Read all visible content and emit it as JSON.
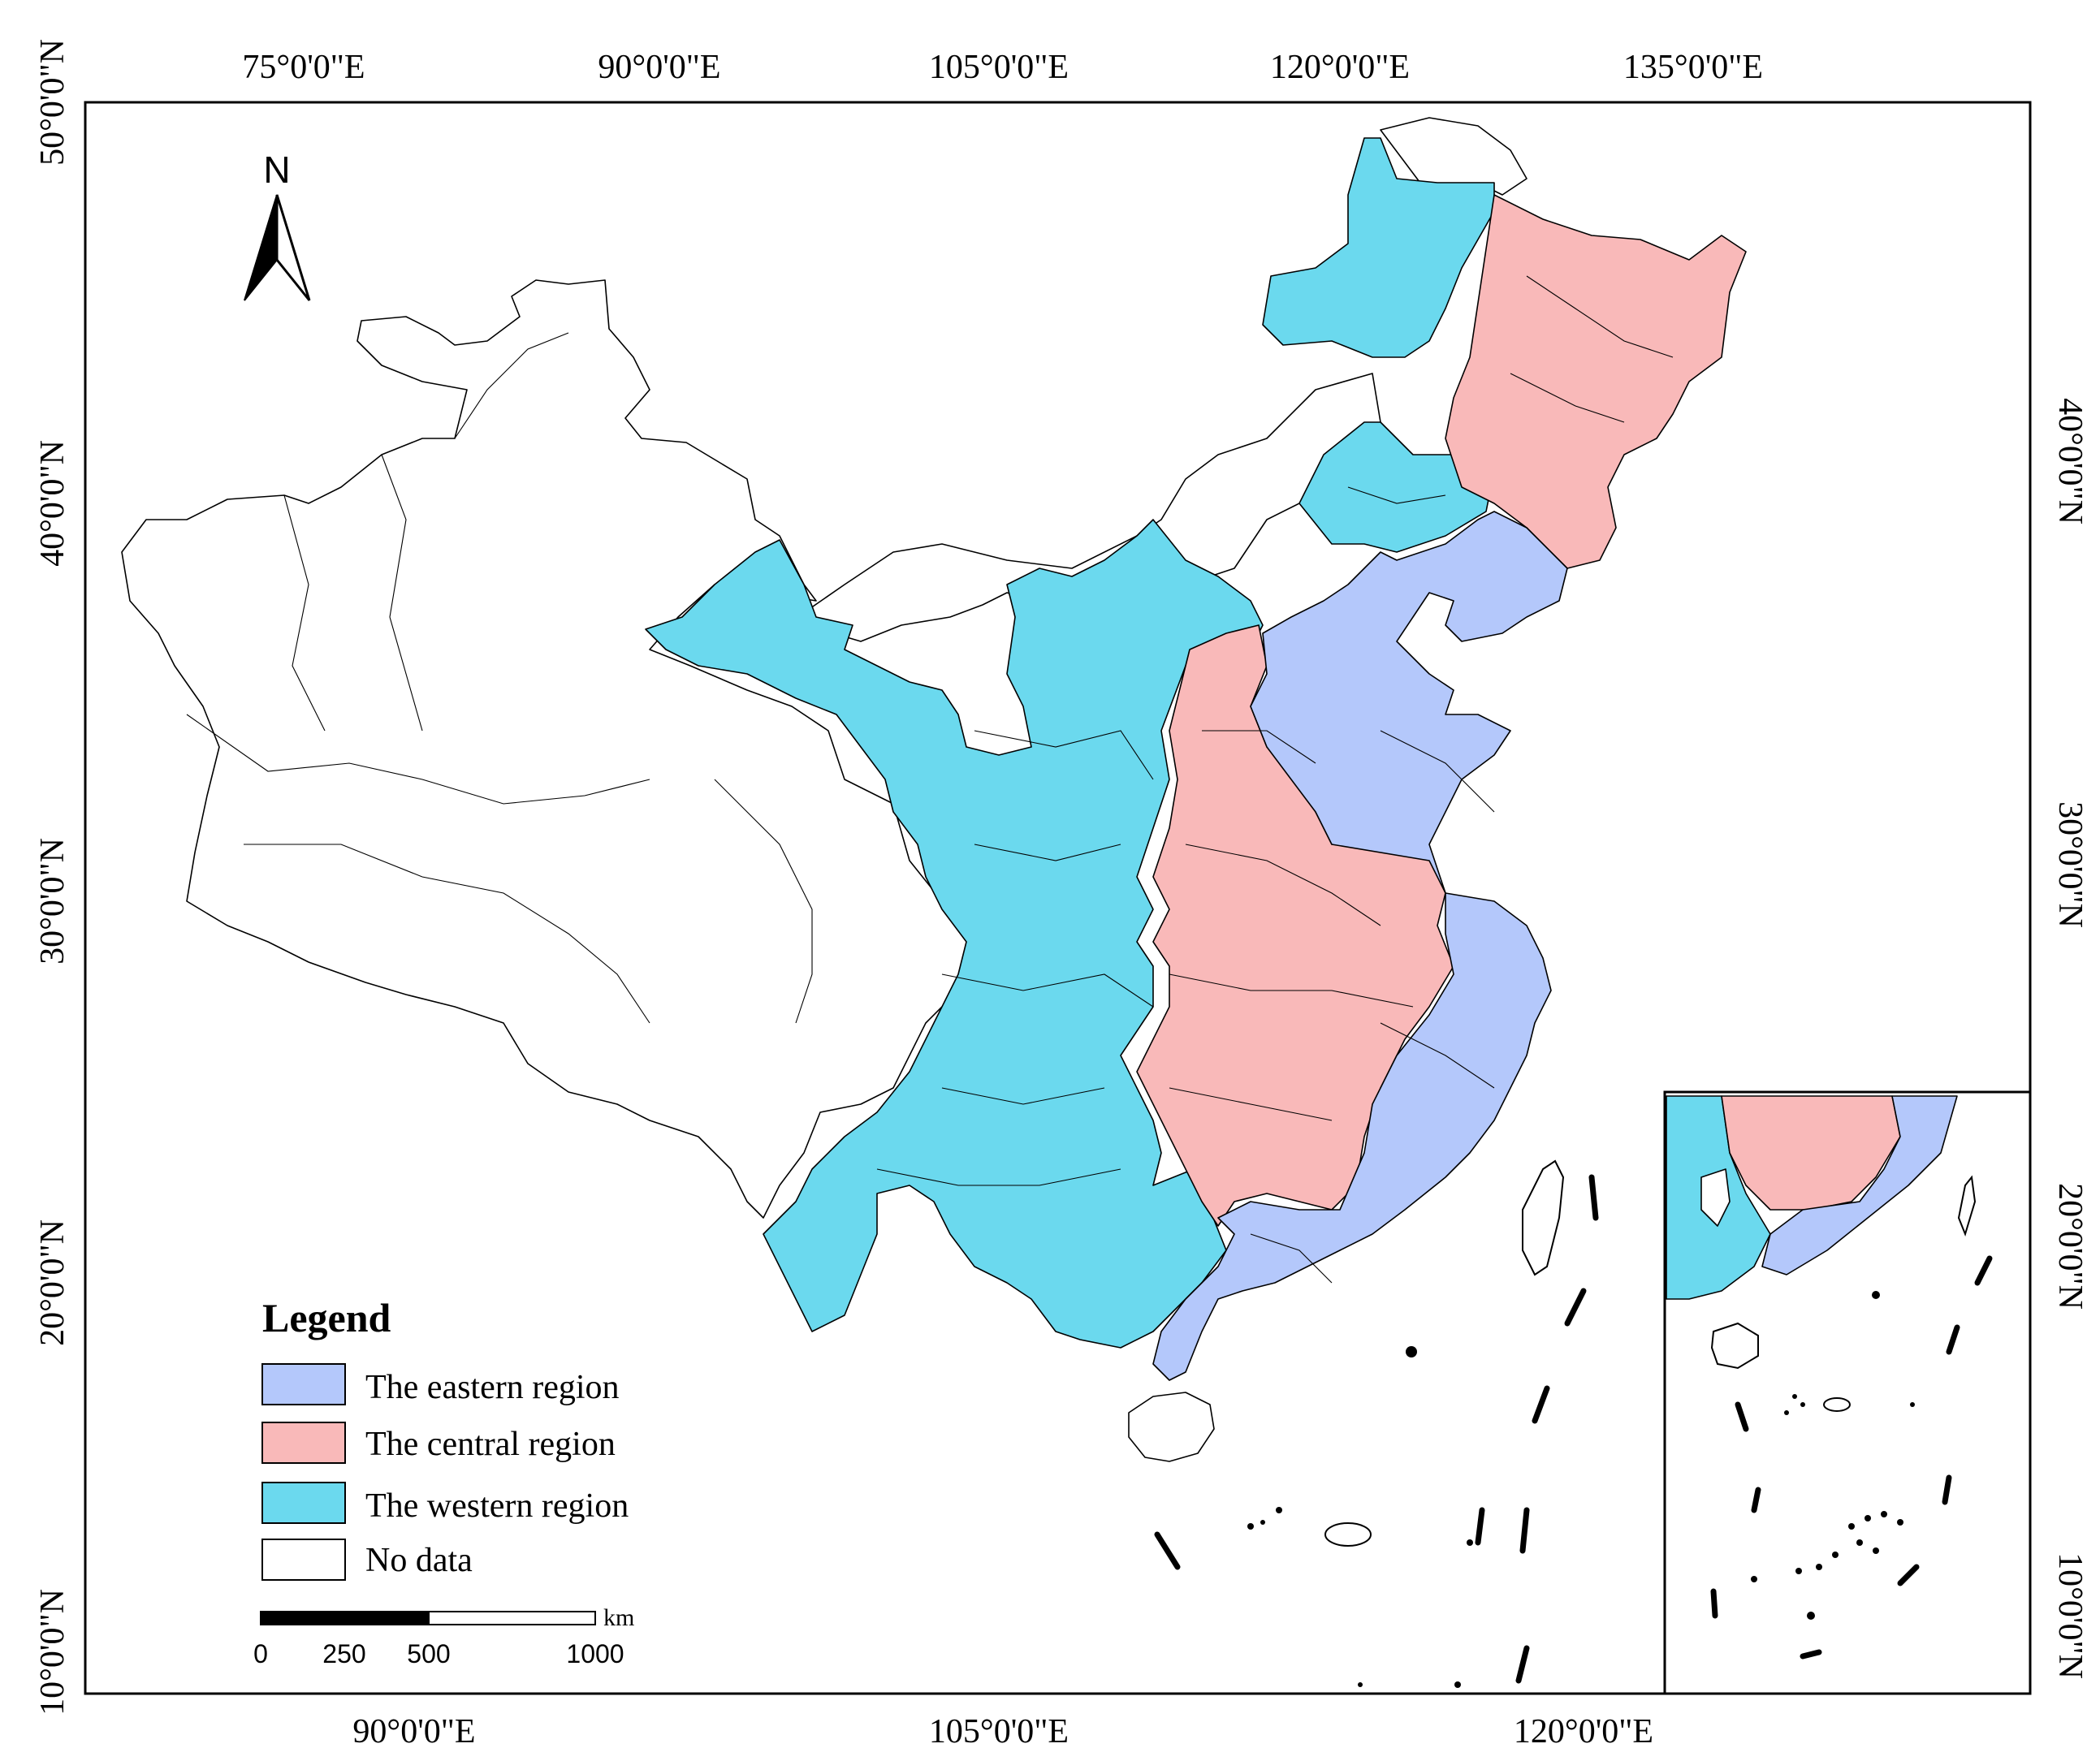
{
  "map": {
    "top_longitude_labels": [
      "75°0'0\"E",
      "90°0'0\"E",
      "105°0'0\"E",
      "120°0'0\"E",
      "135°0'0\"E"
    ],
    "bottom_longitude_labels": [
      "90°0'0\"E",
      "105°0'0\"E",
      "120°0'0\"E"
    ],
    "left_latitude_labels": [
      "50°0'0\"N",
      "40°0'0\"N",
      "30°0'0\"N",
      "20°0'0\"N",
      "10°0'0\"N"
    ],
    "right_latitude_labels": [
      "40°0'0\"N",
      "30°0'0\"N",
      "20°0'0\"N",
      "10°0'0\"N"
    ],
    "north_arrow": {
      "letter": "N",
      "icon": "north-arrow-icon"
    }
  },
  "legend": {
    "title": "Legend",
    "items": [
      {
        "label": "The eastern region",
        "color": "#b4c8fb"
      },
      {
        "label": "The central region",
        "color": "#f9b9b9"
      },
      {
        "label": "The western region",
        "color": "#6bd9ee"
      },
      {
        "label": "No data",
        "color": "#ffffff"
      }
    ]
  },
  "scale_bar": {
    "unit": "km",
    "ticks": [
      "0",
      "250",
      "500",
      "1000"
    ]
  },
  "colors": {
    "eastern": "#b4c8fb",
    "central": "#f9b9b9",
    "western": "#6bd9ee",
    "no_data": "#ffffff",
    "border": "#000000"
  }
}
